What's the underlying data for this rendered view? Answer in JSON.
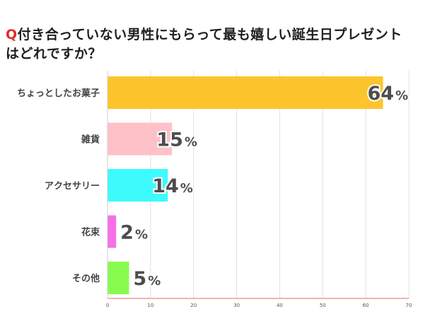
{
  "header": {
    "q_mark": "Q",
    "title_line1": "付き合っていない男性にもらって最も嬉しい誕生日プレゼント",
    "title_line2": "はどれですか？"
  },
  "chart_data": {
    "type": "bar",
    "orientation": "horizontal",
    "categories": [
      "ちょっとしたお菓子",
      "雑貨",
      "アクセサリー",
      "花束",
      "その他"
    ],
    "values": [
      64,
      15,
      14,
      2,
      5
    ],
    "value_suffix": "%",
    "colors": [
      "#fdc52c",
      "#ffc1c8",
      "#3dfbfd",
      "#f66fe8",
      "#88fb4f"
    ],
    "xlim": [
      0,
      70
    ],
    "xticks": [
      0,
      10,
      20,
      30,
      40,
      50,
      60,
      70
    ],
    "grid": true,
    "grid_color": "#e2e2e2",
    "axis_color": "#e06a5a"
  }
}
